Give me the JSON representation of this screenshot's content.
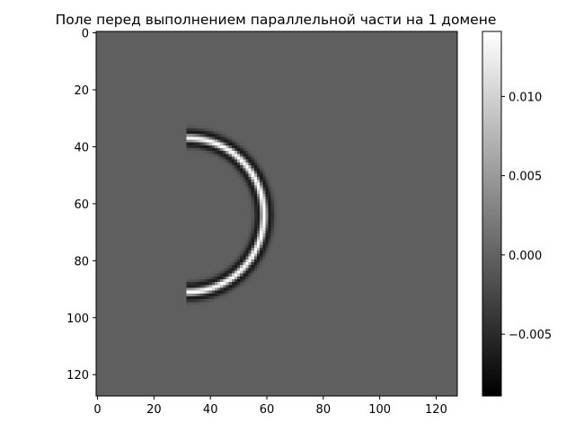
{
  "chart_data": {
    "type": "heatmap",
    "title": "Поле перед выполнением параллельной части на 1 домене",
    "xlabel": "",
    "ylabel": "",
    "grid": false,
    "colormap": "gray",
    "origin": "upper",
    "shape": [
      128,
      128
    ],
    "x_range": [
      0,
      127
    ],
    "y_range": [
      127,
      0
    ],
    "x_ticks": [
      0,
      20,
      40,
      60,
      80,
      100,
      120
    ],
    "y_ticks": [
      0,
      20,
      40,
      60,
      80,
      100,
      120
    ],
    "value_range": [
      -0.0089,
      0.0141
    ],
    "background_value": -0.0003,
    "feature": {
      "shape": "half-ring",
      "center": [
        32,
        64
      ],
      "radius": 27,
      "side": "right",
      "profile": "bright band between two dark edges",
      "peak_value": 0.0141,
      "trough_value": -0.0089
    },
    "colorbar": {
      "position": "right",
      "ticks": [
        0.01,
        0.005,
        0.0,
        -0.005
      ],
      "tick_labels": [
        "0.010",
        "0.005",
        "0.000",
        "−0.005"
      ]
    }
  }
}
